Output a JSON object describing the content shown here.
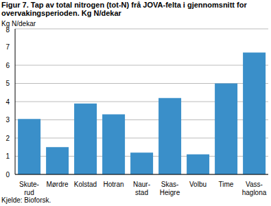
{
  "chart_data": {
    "type": "bar",
    "title": "Figur 7. Tap av total nitrogen (tot-N)  frå JOVA-felta i gjennomsnitt for overvakingsperioden.  Kg N/dekar",
    "y_label": "Kg N/dekar",
    "source": "Kjelde: Bioforsk.",
    "categories": [
      "Skute-\nrud",
      "Mørdre",
      "Kolstad",
      "Hotran",
      "Naur-\nstad",
      "Skas-\nHeigre",
      "Volbu",
      "Time",
      "Vass-\nhaglona"
    ],
    "values": [
      3.05,
      1.5,
      3.9,
      3.3,
      1.2,
      4.2,
      1.1,
      5.0,
      6.7
    ],
    "color": "#3a8fc9",
    "ylim": [
      0,
      8
    ],
    "yticks": [
      0,
      1,
      2,
      3,
      4,
      5,
      6,
      7,
      8
    ],
    "grid": true
  }
}
